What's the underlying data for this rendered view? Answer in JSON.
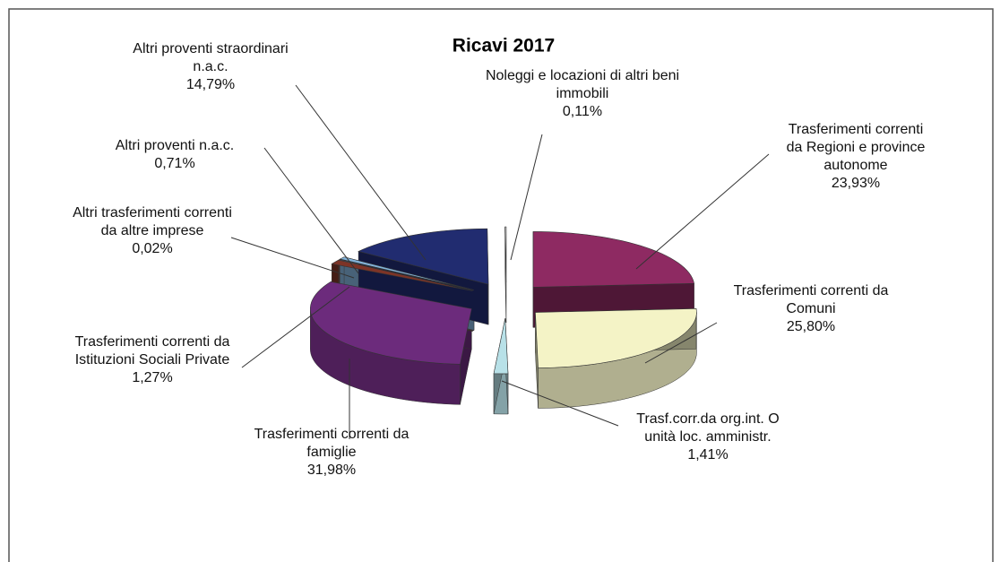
{
  "chart_data": {
    "type": "pie",
    "title": "Ricavi 2017",
    "categories": [
      "Trasferimenti correnti da Regioni e province autonome",
      "Trasferimenti correnti da Comuni",
      "Trasf.corr.da org.int. O unità loc. amministr.",
      "Trasferimenti correnti da famiglie",
      "Trasferimenti correnti da Istituzioni Sociali Private",
      "Altri trasferimenti correnti da altre imprese",
      "Altri proventi n.a.c.",
      "Altri proventi straordinari n.a.c.",
      "Noleggi e locazioni di altri beni immobili"
    ],
    "values": [
      23.93,
      25.8,
      1.41,
      31.98,
      1.27,
      0.02,
      0.71,
      14.79,
      0.11
    ],
    "value_labels": [
      "23,93%",
      "25,80%",
      "1,41%",
      "31,98%",
      "1,27%",
      "0,02%",
      "0,71%",
      "14,79%",
      "0,11%"
    ],
    "colors": [
      "#8e2a62",
      "#f4f3c6",
      "#b8e1e8",
      "#6c2b7c",
      "#7d3427",
      "#d3e6f0",
      "#82b3da",
      "#212c70",
      "#ffffff"
    ]
  }
}
